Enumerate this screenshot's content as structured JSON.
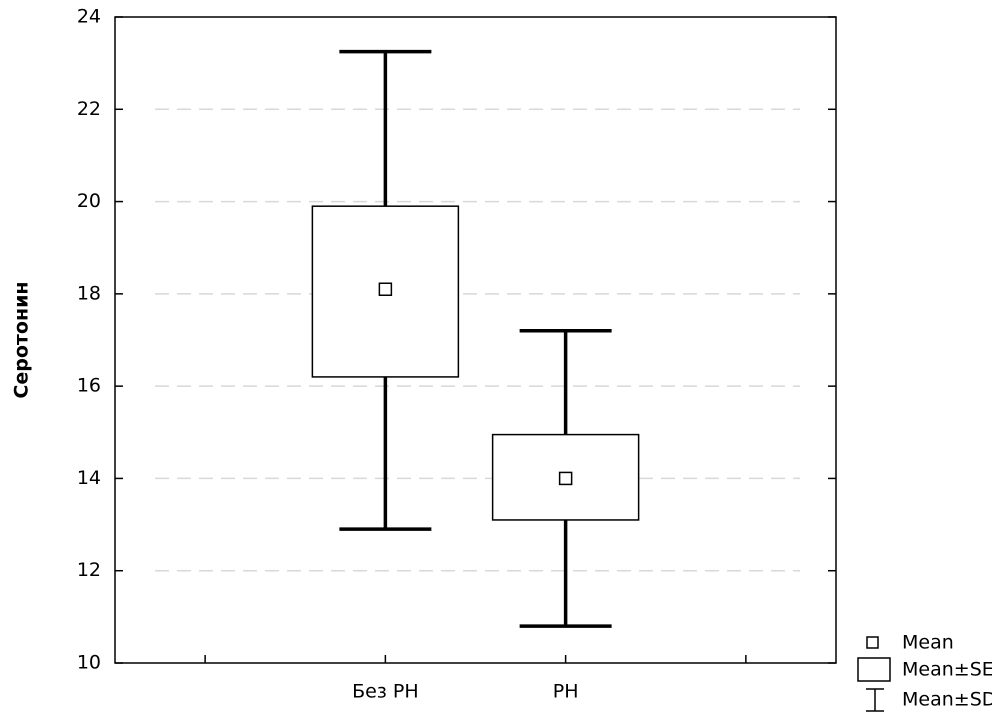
{
  "chart_data": {
    "type": "box",
    "y_label": "Серотонин",
    "categories": [
      null,
      "Без РН",
      "РН",
      null
    ],
    "mean": {
      "name": "Mean",
      "values": [
        null,
        18.1,
        14.0,
        null
      ]
    },
    "se": {
      "name": "Mean±SE",
      "low": [
        null,
        16.2,
        13.1,
        null
      ],
      "high": [
        null,
        19.9,
        14.95,
        null
      ]
    },
    "sd": {
      "name": "Mean±SD",
      "low": [
        null,
        12.9,
        10.8,
        null
      ],
      "high": [
        null,
        23.25,
        17.2,
        null
      ]
    },
    "ylim": [
      10,
      24
    ],
    "yticks": [
      10,
      12,
      14,
      16,
      18,
      20,
      22,
      24
    ],
    "grid": true,
    "legend": "bottom-right",
    "color": "#000000"
  }
}
